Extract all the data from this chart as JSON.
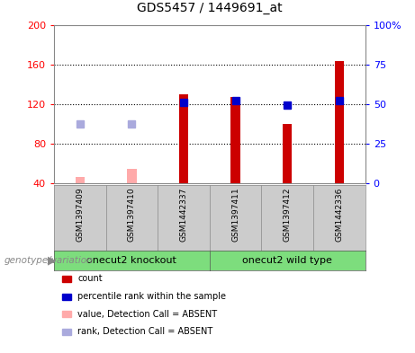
{
  "title": "GDS5457 / 1449691_at",
  "samples": [
    "GSM1397409",
    "GSM1397410",
    "GSM1442337",
    "GSM1397411",
    "GSM1397412",
    "GSM1442336"
  ],
  "count_values": [
    null,
    null,
    130,
    127,
    100,
    163
  ],
  "rank_values": [
    null,
    null,
    122,
    124,
    119,
    124
  ],
  "absent_count_values": [
    47,
    55,
    null,
    null,
    null,
    null
  ],
  "absent_rank_values": [
    100,
    100,
    null,
    null,
    null,
    null
  ],
  "ylim_left": [
    40,
    200
  ],
  "ylim_right": [
    0,
    100
  ],
  "yticks_left": [
    40,
    80,
    120,
    160,
    200
  ],
  "yticks_right": [
    0,
    25,
    50,
    75,
    100
  ],
  "ytick_labels_left": [
    "40",
    "80",
    "120",
    "160",
    "200"
  ],
  "ytick_labels_right": [
    "0",
    "25",
    "50",
    "75",
    "100%"
  ],
  "bar_color": "#cc0000",
  "rank_color": "#0000cc",
  "absent_bar_color": "#ffaaaa",
  "absent_rank_color": "#aaaadd",
  "group1_label": "onecut2 knockout",
  "group2_label": "onecut2 wild type",
  "group_color": "#7ddd7d",
  "genotype_label": "genotype/variation",
  "legend_items": [
    {
      "label": "count",
      "color": "#cc0000"
    },
    {
      "label": "percentile rank within the sample",
      "color": "#0000cc"
    },
    {
      "label": "value, Detection Call = ABSENT",
      "color": "#ffaaaa"
    },
    {
      "label": "rank, Detection Call = ABSENT",
      "color": "#aaaadd"
    }
  ],
  "bar_width": 0.18,
  "rank_marker_size": 6,
  "sample_box_color": "#cccccc",
  "plot_border_color": "#888888"
}
